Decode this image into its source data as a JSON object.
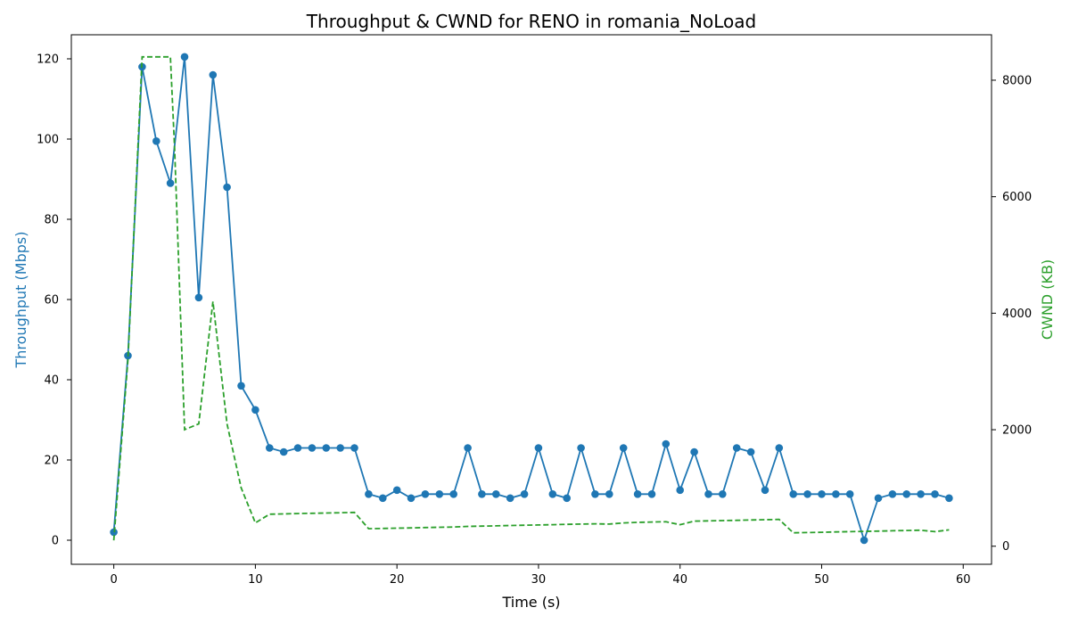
{
  "chart_data": {
    "type": "line",
    "title": "Throughput & CWND for RENO in romania_NoLoad",
    "xlabel": "Time (s)",
    "ylabel_left": "Throughput (Mbps)",
    "ylabel_right": "CWND (KB)",
    "xlim": [
      -3,
      62
    ],
    "ylim_left": [
      -6,
      126
    ],
    "ylim_right": [
      -310,
      8780
    ],
    "x_ticks": [
      "0",
      "10",
      "20",
      "30",
      "40",
      "50",
      "60"
    ],
    "y_left_ticks": [
      "0",
      "20",
      "40",
      "60",
      "80",
      "100",
      "120"
    ],
    "y_right_ticks": [
      "0",
      "2000",
      "4000",
      "6000",
      "8000"
    ],
    "grid": false,
    "colors": {
      "throughput": "#1f77b4",
      "cwnd": "#2ca02c"
    },
    "series": [
      {
        "axis": "left",
        "style": "solid-markers",
        "x": [
          0,
          1,
          2,
          3,
          4,
          5,
          6,
          7,
          8,
          9,
          10,
          11,
          12,
          13,
          14,
          15,
          16,
          17,
          18,
          19,
          20,
          21,
          22,
          23,
          24,
          25,
          26,
          27,
          28,
          29,
          30,
          31,
          32,
          33,
          34,
          35,
          36,
          37,
          38,
          39,
          40,
          41,
          42,
          43,
          44,
          45,
          46,
          47,
          48,
          49,
          50,
          51,
          52,
          53,
          54,
          55,
          56,
          57,
          58,
          59
        ],
        "values": [
          2,
          46,
          118,
          99.5,
          89,
          120.5,
          60.5,
          116,
          88,
          38.5,
          32.5,
          23,
          22,
          23,
          23,
          23,
          23,
          23,
          11.5,
          10.5,
          12.5,
          10.5,
          11.5,
          11.5,
          11.5,
          23,
          11.5,
          11.5,
          10.5,
          11.5,
          23,
          11.5,
          10.5,
          23,
          11.5,
          11.5,
          23,
          11.5,
          11.5,
          24,
          12.5,
          22,
          11.5,
          11.5,
          23,
          22,
          12.5,
          23,
          11.5,
          11.5,
          11.5,
          11.5,
          11.5,
          0,
          10.5,
          11.5,
          11.5,
          11.5,
          11.5,
          10.5
        ]
      },
      {
        "axis": "right",
        "style": "dashed",
        "x": [
          0,
          1,
          2,
          3,
          4,
          4.3,
          5,
          6,
          7,
          8,
          9,
          10,
          11,
          12,
          13,
          14,
          15,
          16,
          17,
          18,
          19,
          20,
          21,
          22,
          23,
          24,
          25,
          26,
          27,
          28,
          29,
          30,
          31,
          32,
          33,
          34,
          35,
          36,
          37,
          38,
          39,
          40,
          41,
          42,
          43,
          44,
          45,
          46,
          47,
          48,
          49,
          50,
          51,
          52,
          53,
          54,
          55,
          56,
          57,
          58,
          59
        ],
        "values": [
          100,
          3200,
          8400,
          8400,
          8400,
          6800,
          2000,
          2100,
          4200,
          2100,
          1000,
          400,
          550,
          555,
          560,
          565,
          570,
          575,
          580,
          300,
          305,
          310,
          315,
          320,
          325,
          330,
          340,
          345,
          350,
          355,
          360,
          365,
          370,
          375,
          380,
          385,
          380,
          400,
          410,
          415,
          420,
          370,
          430,
          435,
          440,
          445,
          450,
          455,
          460,
          230,
          235,
          240,
          245,
          250,
          255,
          260,
          265,
          270,
          275,
          250,
          280
        ]
      }
    ]
  }
}
